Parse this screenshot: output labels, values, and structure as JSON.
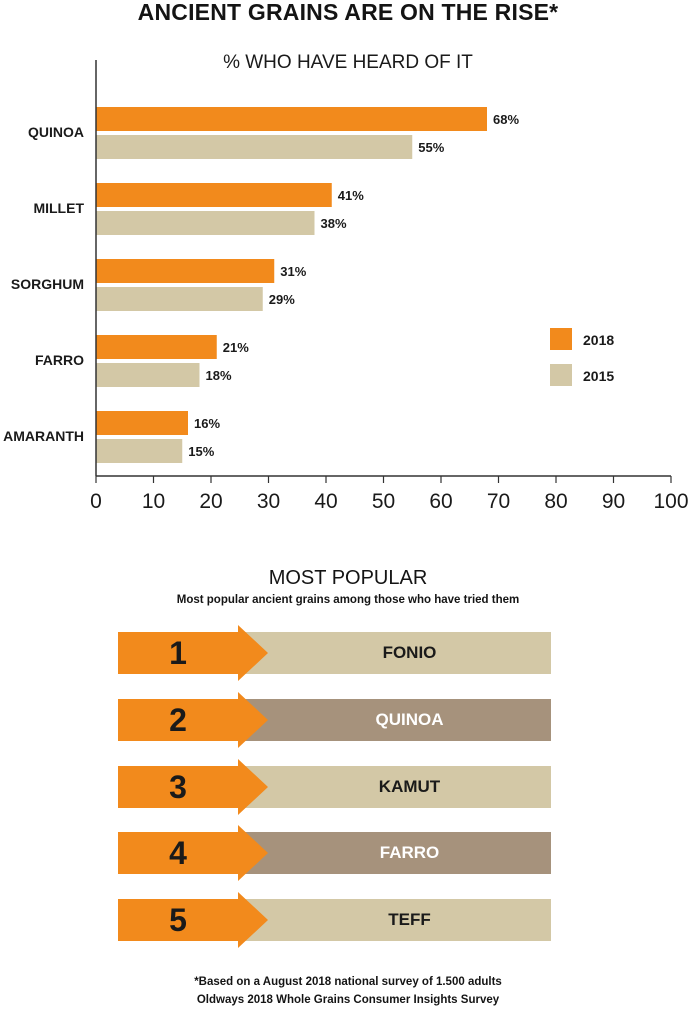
{
  "title": "ANCIENT GRAINS ARE ON THE RISE*",
  "chart_data": {
    "type": "bar",
    "orientation": "horizontal",
    "title": "% WHO HAVE HEARD OF IT",
    "categories": [
      "QUINOA",
      "MILLET",
      "SORGHUM",
      "FARRO",
      "AMARANTH"
    ],
    "series": [
      {
        "name": "2018",
        "values": [
          68,
          41,
          31,
          21,
          16
        ],
        "labels": [
          "68%",
          "41%",
          "31%",
          "21%",
          "16%"
        ],
        "color": "#f28a1c"
      },
      {
        "name": "2015",
        "values": [
          55,
          38,
          29,
          18,
          15
        ],
        "labels": [
          "55%",
          "38%",
          "29%",
          "18%",
          "15%"
        ],
        "color": "#d3c8a6"
      }
    ],
    "xlim": [
      0,
      100
    ],
    "xticks": [
      "0",
      "10",
      "20",
      "30",
      "40",
      "50",
      "60",
      "70",
      "80",
      "90",
      "100"
    ],
    "grid": false,
    "legend_position": "right"
  },
  "popular": {
    "title": "MOST POPULAR",
    "subtitle": "Most popular ancient grains among those who have tried them",
    "items": [
      {
        "rank": "1",
        "name": "FONIO",
        "style": "light"
      },
      {
        "rank": "2",
        "name": "QUINOA",
        "style": "dark"
      },
      {
        "rank": "3",
        "name": "KAMUT",
        "style": "light"
      },
      {
        "rank": "4",
        "name": "FARRO",
        "style": "dark"
      },
      {
        "rank": "5",
        "name": "TEFF",
        "style": "light"
      }
    ]
  },
  "footnote": "*Based on a August 2018 national survey of 1.500 adults",
  "source": "Oldways 2018 Whole Grains Consumer Insights Survey",
  "colors": {
    "orange": "#f28a1c",
    "tan": "#d3c8a6",
    "brown": "#a6927c"
  }
}
